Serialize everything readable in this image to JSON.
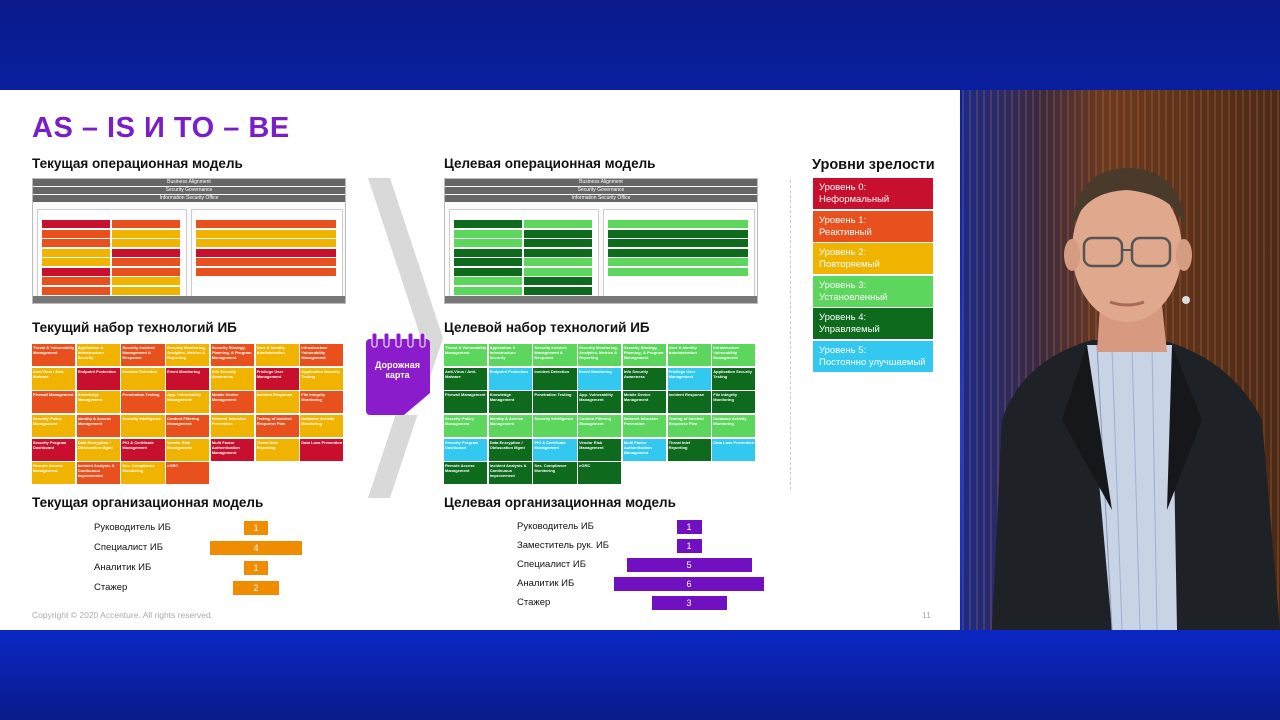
{
  "slide": {
    "title": "AS – IS И TO – BE",
    "copyright": "Copyright © 2020 Accenture. All rights reserved.",
    "page_number": "11"
  },
  "current": {
    "op_model_title": "Текущая операционная модель",
    "tech_title": "Текущий набор технологий ИБ",
    "org_title": "Текущая организационная модель",
    "org": [
      {
        "label": "Руководитель ИБ",
        "value": "1",
        "frac": 0.1
      },
      {
        "label": "Специалист ИБ",
        "value": "4",
        "frac": 0.4
      },
      {
        "label": "Аналитик ИБ",
        "value": "1",
        "frac": 0.1
      },
      {
        "label": "Стажер",
        "value": "2",
        "frac": 0.2
      }
    ],
    "org_color": "#f08c00"
  },
  "target": {
    "op_model_title": "Целевая операционная модель",
    "tech_title": "Целевой набор технологий ИБ",
    "org_title": "Целевая организационная модель",
    "org": [
      {
        "label": "Руководитель ИБ",
        "value": "1",
        "frac": 0.1
      },
      {
        "label": "Заместитель рук. ИБ",
        "value": "1",
        "frac": 0.1
      },
      {
        "label": "Специалист ИБ",
        "value": "5",
        "frac": 0.5
      },
      {
        "label": "Аналитик ИБ",
        "value": "6",
        "frac": 0.6
      },
      {
        "label": "Стажер",
        "value": "3",
        "frac": 0.3
      }
    ],
    "org_color": "#7010c0"
  },
  "roadmap": {
    "label": "Дорожная карта",
    "color": "#8a1ccc"
  },
  "maturity": {
    "title": "Уровни зрелости",
    "levels": [
      {
        "line1": "Уровень 0:",
        "line2": "Неформальный",
        "color": "#c8102e"
      },
      {
        "line1": "Уровень 1:",
        "line2": "Реактивный",
        "color": "#e8501e"
      },
      {
        "line1": "Уровень 2:",
        "line2": "Повторяемый",
        "color": "#f0b400"
      },
      {
        "line1": "Уровень 3:",
        "line2": "Установленный",
        "color": "#5cd65c"
      },
      {
        "line1": "Уровень 4:",
        "line2": "Управляемый",
        "color": "#0e6b1e"
      },
      {
        "line1": "Уровень 5:",
        "line2": "Постоянно улучшаемый",
        "color": "#33c8f0"
      }
    ]
  },
  "op_model_bars": [
    "Business Alignment",
    "Security Governance",
    "Information Security Office"
  ],
  "tech_items": [
    "Threat & Vulnerability Management",
    "Application & Infrastructure Security",
    "Security Incident Management & Response",
    "Security Monitoring, Analytics, Metrics & Reporting",
    "Security Strategy, Planning, & Program Management",
    "User & Identity Administration",
    "Infrastructure Vulnerability Management",
    "Anti-Virus / Anti-Malware",
    "Endpoint Protection",
    "Incident Detection",
    "Event Monitoring",
    "Info Security Awareness",
    "Privilege User Management",
    "Application Security Testing",
    "Firewall Management",
    "Knowledge Management",
    "Penetration Testing",
    "App. Vulnerability Management",
    "Mobile Device Management",
    "Incident Response",
    "File Integrity Monitoring",
    "Security Policy Management",
    "Identity & Access Management",
    "Security Intelligence",
    "Content Filtering Management",
    "Network Intrusion Prevention",
    "Testing of Incident Response Plan",
    "Database Activity Monitoring",
    "Security Program Dashboard",
    "Data Encryption / Obfuscation Mgmt",
    "PKI & Certificate Management",
    "Vendor Risk Management",
    "Multi Factor Authentication Management",
    "Threat Intel Reporting",
    "Data Loss Prevention",
    "Remote Access Management",
    "Incident Analysis & Continuous Improvement",
    "Sec. Compliance Monitoring",
    "eGRC"
  ]
}
